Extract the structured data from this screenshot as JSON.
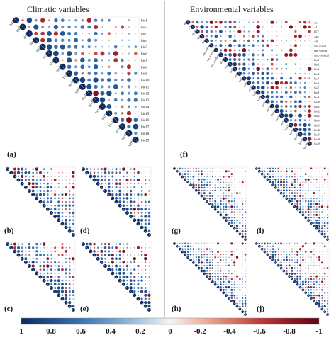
{
  "titles": {
    "left": "Climatic variables",
    "right": "Environmental variables"
  },
  "panel_labels": [
    "(a)",
    "(b)",
    "(c)",
    "(d)",
    "(e)",
    "(f)",
    "(g)",
    "(h)",
    "(i)",
    "(j)"
  ],
  "colorbar": {
    "ticks": [
      "1",
      "0.8",
      "0.6",
      "0.4",
      "0.2",
      "0",
      "-0.2",
      "-0.4",
      "-0.6",
      "-0.8",
      "-1"
    ],
    "values": [
      1,
      0.8,
      0.6,
      0.4,
      0.2,
      0,
      -0.2,
      -0.4,
      -0.6,
      -0.8,
      -1
    ],
    "colors": {
      "positive": "#1d3f7a",
      "mid": "#f2f2f2",
      "negative": "#6b0a14"
    }
  },
  "chart_data": [
    {
      "type": "heatmap",
      "panel": "(a)",
      "variables": [
        "bio1",
        "bio2",
        "bio3",
        "bio4",
        "bio5",
        "bio6",
        "bio7",
        "bio8",
        "bio9",
        "bio10",
        "bio11",
        "bio12",
        "bio13",
        "bio14",
        "bio15",
        "bio16",
        "bio17",
        "bio18",
        "bio19"
      ],
      "range": [
        -1,
        1
      ]
    },
    {
      "type": "heatmap",
      "panel": "(f)",
      "variables": [
        "dis",
        "AI",
        "PET",
        "Asp",
        "Alp",
        "mn_solrad",
        "mn_watvap",
        "mn_windspd",
        "bio1",
        "bio2",
        "bio3",
        "bio4",
        "bio5",
        "bio6",
        "bio7",
        "bio8",
        "bio9",
        "bio10",
        "bio11",
        "bio12",
        "bio13",
        "bio14",
        "bio15",
        "bio16",
        "bio17",
        "bio18",
        "bio19"
      ],
      "range": [
        -1,
        1
      ]
    },
    {
      "type": "heatmap",
      "panel": "(b)",
      "size": 19,
      "range": [
        -1,
        1
      ]
    },
    {
      "type": "heatmap",
      "panel": "(c)",
      "size": 19,
      "range": [
        -1,
        1
      ]
    },
    {
      "type": "heatmap",
      "panel": "(d)",
      "size": 19,
      "range": [
        -1,
        1
      ]
    },
    {
      "type": "heatmap",
      "panel": "(e)",
      "size": 19,
      "range": [
        -1,
        1
      ]
    },
    {
      "type": "heatmap",
      "panel": "(g)",
      "size": 27,
      "range": [
        -1,
        1
      ]
    },
    {
      "type": "heatmap",
      "panel": "(h)",
      "size": 27,
      "range": [
        -1,
        1
      ]
    },
    {
      "type": "heatmap",
      "panel": "(i)",
      "size": 27,
      "range": [
        -1,
        1
      ]
    },
    {
      "type": "heatmap",
      "panel": "(j)",
      "size": 27,
      "range": [
        -1,
        1
      ]
    }
  ]
}
